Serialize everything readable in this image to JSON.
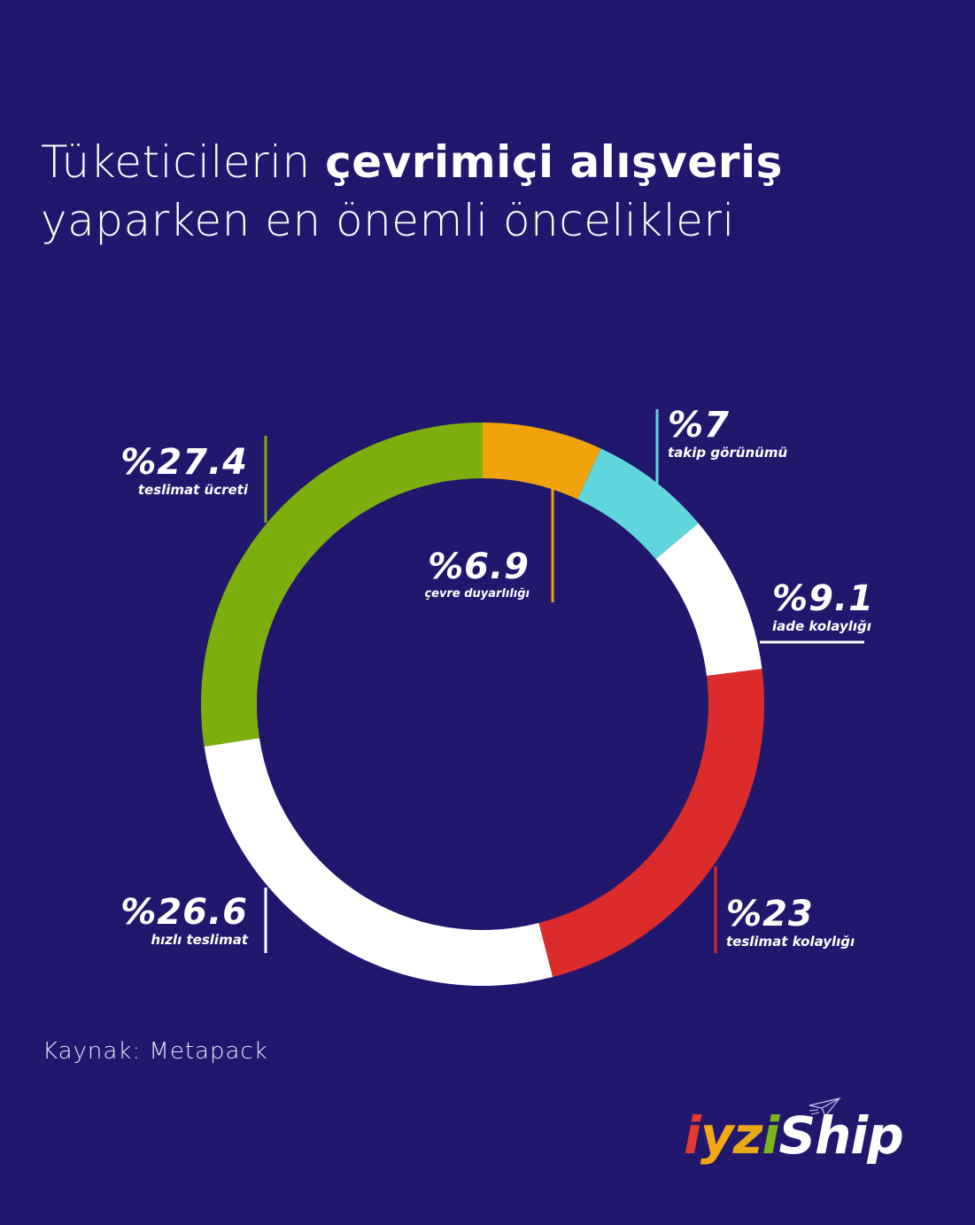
{
  "title": {
    "part1": "Tüketicilerin ",
    "bold": "çevrimiçi alışveriş",
    "line2": "yaparken en önemli öncelikleri"
  },
  "chart_data": {
    "type": "pie",
    "subtype": "donut",
    "title": "Tüketicilerin çevrimiçi alışveriş yaparken en önemli öncelikleri",
    "unit": "%",
    "categories": [
      "çevre duyarlılığı",
      "takip görünümü",
      "iade kolaylığı",
      "teslimat kolaylığı",
      "hızlı teslimat",
      "teslimat ücreti"
    ],
    "values": [
      6.9,
      7,
      9.1,
      23,
      26.6,
      27.4
    ],
    "colors": [
      "#f0a30a",
      "#5fd6dc",
      "#ffffff",
      "#dc2b2b",
      "#ffffff",
      "#7cae0c"
    ],
    "start_angle_deg": 0,
    "direction": "clockwise",
    "source": "Kaynak: Metapack"
  },
  "labels": {
    "teslimat_ucreti": {
      "value": "%27.4",
      "name": "teslimat ücreti"
    },
    "cevre": {
      "value": "%6.9",
      "name": "çevre duyarlılığı"
    },
    "takip": {
      "value": "%7",
      "name": "takip görünümü"
    },
    "iade": {
      "value": "%9.1",
      "name": "iade kolaylığı"
    },
    "teslimat_kolayligi": {
      "value": "%23",
      "name": "teslimat kolaylığı"
    },
    "hizli": {
      "value": "%26.6",
      "name": "hızlı teslimat"
    }
  },
  "source": "Kaynak: Metapack",
  "logo": {
    "i": "i",
    "y": "y",
    "z": "z",
    "i2": "i",
    "ship": "Ship"
  }
}
